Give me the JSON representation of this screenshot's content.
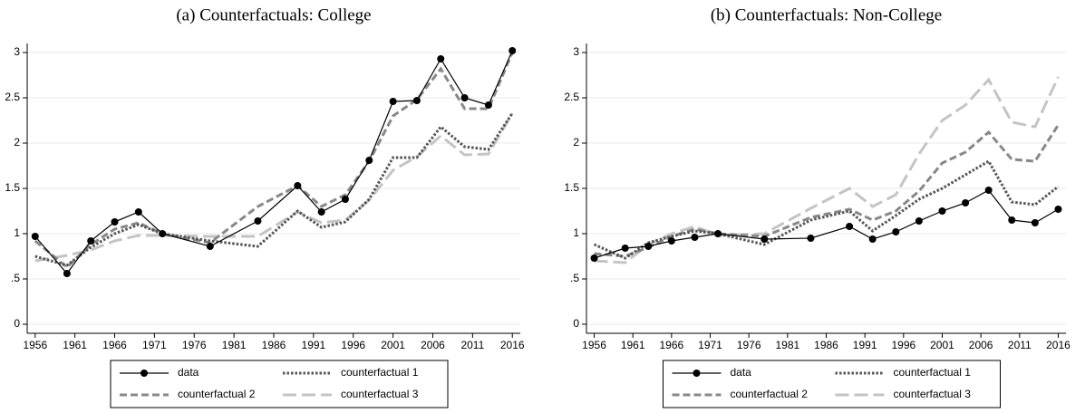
{
  "chart_data": [
    {
      "type": "line",
      "title": "(a) Counterfactuals: College",
      "x": [
        1956,
        1960,
        1963,
        1966,
        1969,
        1972,
        1978,
        1984,
        1989,
        1992,
        1995,
        1998,
        2001,
        2004,
        2007,
        2010,
        2013,
        2016
      ],
      "series": [
        {
          "name": "data",
          "color": "#000000",
          "dash": "solid",
          "marker": true,
          "values": [
            0.97,
            0.56,
            0.92,
            1.13,
            1.24,
            1.0,
            0.86,
            1.14,
            1.53,
            1.24,
            1.38,
            1.81,
            2.46,
            2.47,
            2.93,
            2.5,
            2.42,
            3.02
          ]
        },
        {
          "name": "counterfactual 1",
          "color": "#555555",
          "dash": "dot",
          "marker": false,
          "values": [
            0.75,
            0.65,
            0.85,
            1.0,
            1.1,
            1.0,
            0.92,
            0.86,
            1.25,
            1.07,
            1.13,
            1.38,
            1.84,
            1.84,
            2.18,
            1.96,
            1.93,
            2.33
          ]
        },
        {
          "name": "counterfactual 2",
          "color": "#888888",
          "dash": "dash",
          "marker": false,
          "values": [
            0.92,
            0.63,
            0.88,
            1.05,
            1.12,
            1.0,
            0.9,
            1.3,
            1.53,
            1.3,
            1.43,
            1.8,
            2.3,
            2.48,
            2.82,
            2.38,
            2.38,
            3.0
          ]
        },
        {
          "name": "counterfactual 3",
          "color": "#c4c4c4",
          "dash": "longdash",
          "marker": false,
          "values": [
            0.7,
            0.76,
            0.82,
            0.92,
            0.98,
            0.98,
            0.97,
            0.97,
            1.24,
            1.12,
            1.15,
            1.37,
            1.7,
            1.85,
            2.08,
            1.87,
            1.88,
            2.33
          ]
        }
      ],
      "xlim": [
        1955,
        2017
      ],
      "xticks": [
        1956,
        1961,
        1966,
        1971,
        1976,
        1981,
        1986,
        1991,
        1996,
        2001,
        2006,
        2011,
        2016
      ],
      "ylim": [
        -0.1,
        3.1
      ],
      "yticks": [
        0,
        {
          "value": 0.5,
          "label": ".5"
        },
        1,
        1.5,
        2,
        2.5,
        3
      ],
      "grid": true,
      "legend": "bottom"
    },
    {
      "type": "line",
      "title": "(b) Counterfactuals: Non-College",
      "x": [
        1956,
        1960,
        1963,
        1966,
        1969,
        1972,
        1978,
        1984,
        1989,
        1992,
        1995,
        1998,
        2001,
        2004,
        2007,
        2010,
        2013,
        2016
      ],
      "series": [
        {
          "name": "data",
          "color": "#000000",
          "dash": "solid",
          "marker": true,
          "values": [
            0.73,
            0.84,
            0.86,
            0.92,
            0.96,
            1.0,
            0.94,
            0.95,
            1.08,
            0.94,
            1.02,
            1.14,
            1.25,
            1.34,
            1.48,
            1.15,
            1.12,
            1.27
          ]
        },
        {
          "name": "counterfactual 1",
          "color": "#555555",
          "dash": "dot",
          "marker": false,
          "values": [
            0.88,
            0.73,
            0.9,
            0.97,
            1.03,
            1.0,
            0.88,
            1.15,
            1.25,
            1.03,
            1.2,
            1.38,
            1.5,
            1.65,
            1.8,
            1.35,
            1.32,
            1.52
          ]
        },
        {
          "name": "counterfactual 2",
          "color": "#888888",
          "dash": "dash",
          "marker": false,
          "values": [
            0.78,
            0.75,
            0.85,
            0.97,
            1.05,
            1.0,
            0.97,
            1.18,
            1.27,
            1.15,
            1.25,
            1.47,
            1.78,
            1.9,
            2.12,
            1.82,
            1.8,
            2.2
          ]
        },
        {
          "name": "counterfactual 3",
          "color": "#c4c4c4",
          "dash": "longdash",
          "marker": false,
          "values": [
            0.7,
            0.68,
            0.88,
            1.0,
            1.08,
            0.98,
            1.0,
            1.28,
            1.5,
            1.3,
            1.43,
            1.88,
            2.25,
            2.42,
            2.7,
            2.23,
            2.18,
            2.73
          ]
        }
      ],
      "xlim": [
        1955,
        2017
      ],
      "xticks": [
        1956,
        1961,
        1966,
        1971,
        1976,
        1981,
        1986,
        1991,
        1996,
        2001,
        2006,
        2011,
        2016
      ],
      "ylim": [
        -0.1,
        3.1
      ],
      "yticks": [
        0,
        {
          "value": 0.5,
          "label": ".5"
        },
        1,
        1.5,
        2,
        2.5,
        3
      ],
      "grid": true,
      "legend": "bottom"
    }
  ]
}
